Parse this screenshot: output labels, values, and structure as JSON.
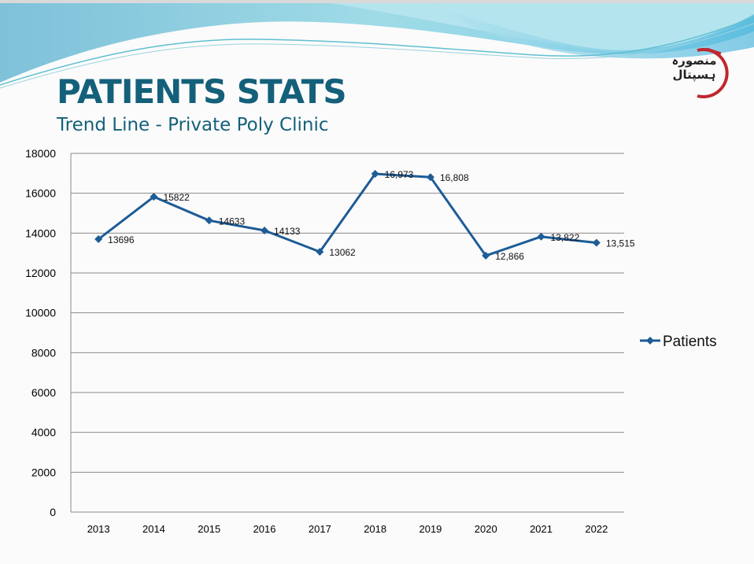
{
  "slide": {
    "title": "PATIENTS STATS",
    "subtitle": "Trend Line -  Private Poly Clinic",
    "logo": {
      "line1": "منصورہ",
      "line2": "ہسپتال",
      "arc_color": "#c0272d"
    },
    "colors": {
      "title": "#14607a",
      "series": "#1d5c96",
      "grid": "#8a8a8a"
    }
  },
  "chart_data": {
    "type": "line",
    "title": "",
    "xlabel": "",
    "ylabel": "",
    "categories": [
      "2013",
      "2014",
      "2015",
      "2016",
      "2017",
      "2018",
      "2019",
      "2020",
      "2021",
      "2022"
    ],
    "series": [
      {
        "name": "Patients",
        "values": [
          13696,
          15822,
          14633,
          14133,
          13062,
          16973,
          16808,
          12866,
          13822,
          13515
        ],
        "data_labels": [
          "13696",
          "15822",
          "14633",
          "14133",
          "13062",
          "16,973",
          "16,808",
          "12,866",
          "13,822",
          "13,515"
        ],
        "marker": "diamond",
        "color": "#1d5c96"
      }
    ],
    "ylim": [
      0,
      18000
    ],
    "yticks": [
      0,
      2000,
      4000,
      6000,
      8000,
      10000,
      12000,
      14000,
      16000,
      18000
    ],
    "ytick_labels": [
      "0",
      "2000",
      "4000",
      "6000",
      "8000",
      "10000",
      "12000",
      "14000",
      "16000",
      "18000"
    ],
    "grid": true,
    "legend": {
      "position": "right",
      "entries": [
        "Patients"
      ]
    }
  }
}
